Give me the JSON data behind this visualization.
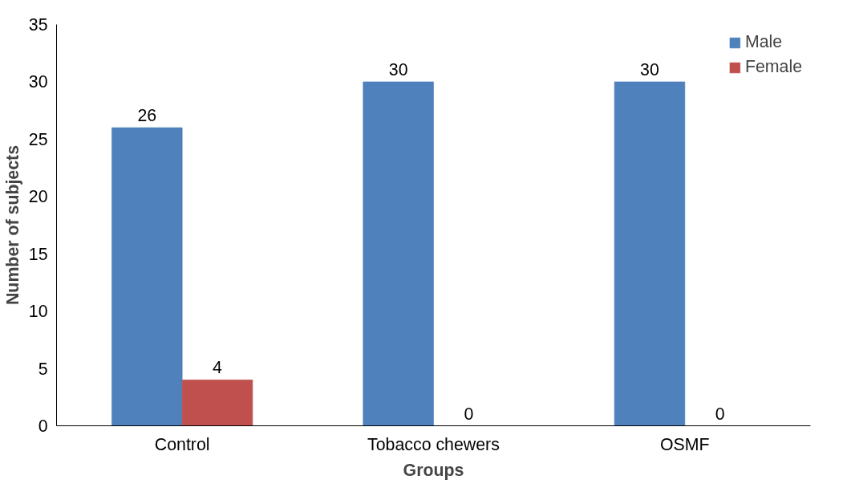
{
  "chart_data": {
    "type": "bar",
    "xlabel": "Groups",
    "ylabel": "Number of subjects",
    "categories": [
      "Control",
      "Tobacco chewers",
      "OSMF"
    ],
    "series": [
      {
        "name": "Male",
        "color": "#4f81bd",
        "values": [
          26,
          30,
          30
        ]
      },
      {
        "name": "Female",
        "color": "#c0504d",
        "values": [
          4,
          0,
          0
        ]
      }
    ],
    "ylim": [
      0,
      35
    ],
    "yticks": [
      0,
      5,
      10,
      15,
      20,
      25,
      30,
      35
    ],
    "grid": false,
    "legend": "top right",
    "data_labels": true
  }
}
